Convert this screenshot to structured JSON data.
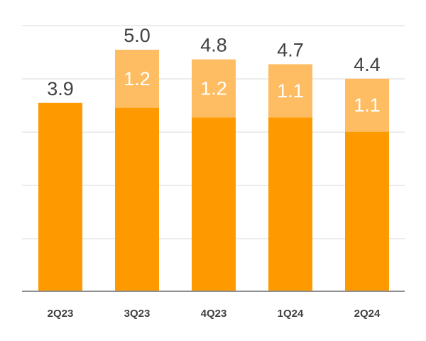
{
  "chart_data": {
    "type": "bar",
    "stacked": true,
    "categories": [
      "2Q23",
      "3Q23",
      "4Q23",
      "1Q24",
      "2Q24"
    ],
    "series": [
      {
        "values": [
          3.9,
          3.8,
          3.6,
          3.6,
          3.3
        ],
        "color": "#ff9900"
      },
      {
        "values": [
          null,
          1.2,
          1.2,
          1.1,
          1.1
        ],
        "color": "#ffbd63"
      }
    ],
    "totals": [
      3.9,
      5.0,
      4.8,
      4.7,
      4.4
    ],
    "total_labels": [
      "3.9",
      "5.0",
      "4.8",
      "4.7",
      "4.4"
    ],
    "segment_labels": [
      null,
      "1.2",
      "1.2",
      "1.1",
      "1.1"
    ],
    "ylim": [
      0,
      5.5
    ],
    "grid": true,
    "legend": "none"
  }
}
